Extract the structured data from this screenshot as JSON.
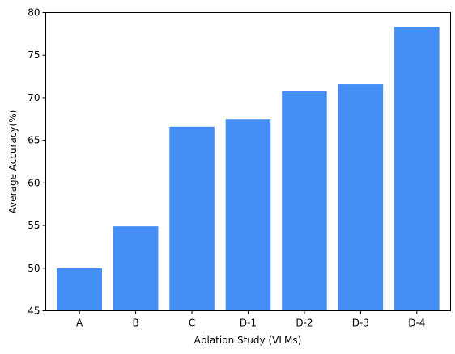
{
  "chart_data": {
    "type": "bar",
    "title": "",
    "xlabel": "Ablation Study (VLMs)",
    "ylabel": "Average Accuracy(%)",
    "categories": [
      "A",
      "B",
      "C",
      "D-1",
      "D-2",
      "D-3",
      "D-4"
    ],
    "values": [
      50.0,
      54.9,
      66.6,
      67.5,
      70.8,
      71.6,
      78.3
    ],
    "ylim": [
      45,
      80
    ],
    "yticks": [
      45,
      50,
      55,
      60,
      65,
      70,
      75,
      80
    ],
    "bar_color": "#448EF6",
    "grid": false,
    "legend": "none"
  }
}
